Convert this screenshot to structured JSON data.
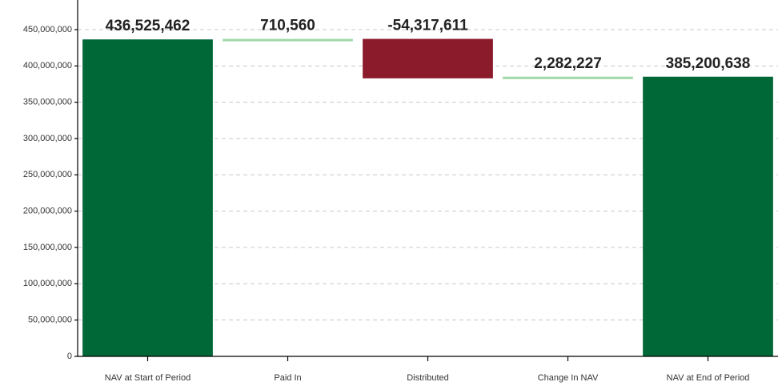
{
  "chart_data": {
    "type": "waterfall",
    "categories": [
      "NAV at Start of Period",
      "Paid In",
      "Distributed",
      "Change In NAV",
      "NAV at End of Period"
    ],
    "values": [
      436525462,
      710560,
      -54317611,
      2282227,
      385200638
    ],
    "value_labels": [
      "436,525,462",
      "710,560",
      "-54,317,611",
      "2,282,227",
      "385,200,638"
    ],
    "measure": [
      "absolute",
      "relative",
      "relative",
      "relative",
      "total"
    ],
    "colors": {
      "total": "#006837",
      "increase": "#9fd8a8",
      "decrease": "#8b1a2b"
    },
    "ylim": [
      0,
      450000000
    ],
    "yticks": [
      0,
      {
        "value": 50000000,
        "label": "50,000,000"
      },
      {
        "value": 100000000,
        "label": "100,000,000"
      },
      {
        "value": 150000000,
        "label": "150,000,000"
      },
      {
        "value": 200000000,
        "label": "200,000,000"
      },
      {
        "value": 250000000,
        "label": "250,000,000"
      },
      {
        "value": 300000000,
        "label": "300,000,000"
      },
      {
        "value": 350000000,
        "label": "350,000,000"
      },
      {
        "value": 400000000,
        "label": "400,000,000"
      },
      {
        "value": 450000000,
        "label": "450,000,000"
      }
    ],
    "grid": true
  }
}
